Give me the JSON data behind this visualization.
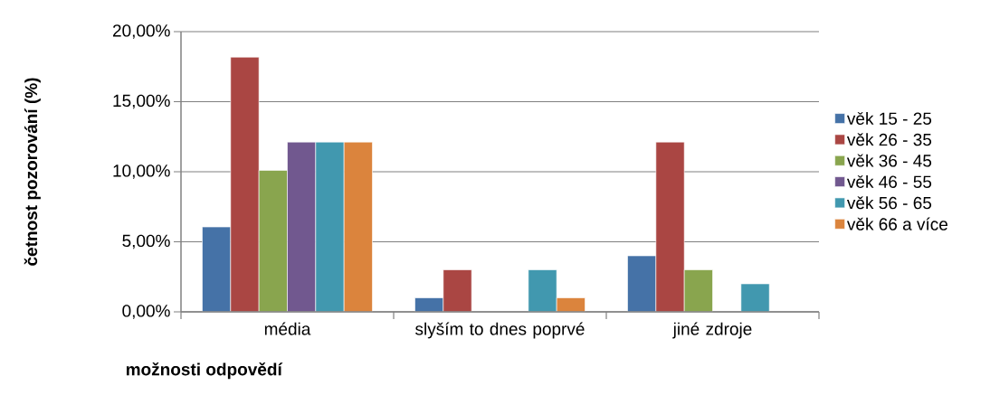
{
  "chart_data": {
    "type": "bar",
    "xlabel": "možnosti odpovědí",
    "ylabel": "četnost pozorování (%)",
    "categories": [
      "média",
      "slyším to dnes poprvé",
      "jiné zdroje"
    ],
    "series": [
      {
        "name": "věk 15 - 25",
        "color": "#4572a7",
        "values": [
          6.06,
          1,
          4
        ]
      },
      {
        "name": "věk 26 - 35",
        "color": "#aa4643",
        "values": [
          18.18,
          3,
          12.12
        ]
      },
      {
        "name": "věk 36 - 45",
        "color": "#89a54e",
        "values": [
          10.1,
          null,
          3
        ]
      },
      {
        "name": "věk 46 - 55",
        "color": "#71588f",
        "values": [
          12.12,
          null,
          null
        ]
      },
      {
        "name": "věk 56 - 65",
        "color": "#4198af",
        "values": [
          12.12,
          3,
          2
        ]
      },
      {
        "name": "věk 66 a více",
        "color": "#db843d",
        "values": [
          12.12,
          1,
          null
        ]
      }
    ],
    "ylim": [
      0,
      20
    ],
    "yticks": [
      {
        "value": 0,
        "label": "0,00%"
      },
      {
        "value": 5,
        "label": "5,00%"
      },
      {
        "value": 10,
        "label": "10,00%"
      },
      {
        "value": 15,
        "label": "15,00%"
      },
      {
        "value": 20,
        "label": "20,00%"
      }
    ],
    "grid": "y",
    "legend": "right"
  }
}
